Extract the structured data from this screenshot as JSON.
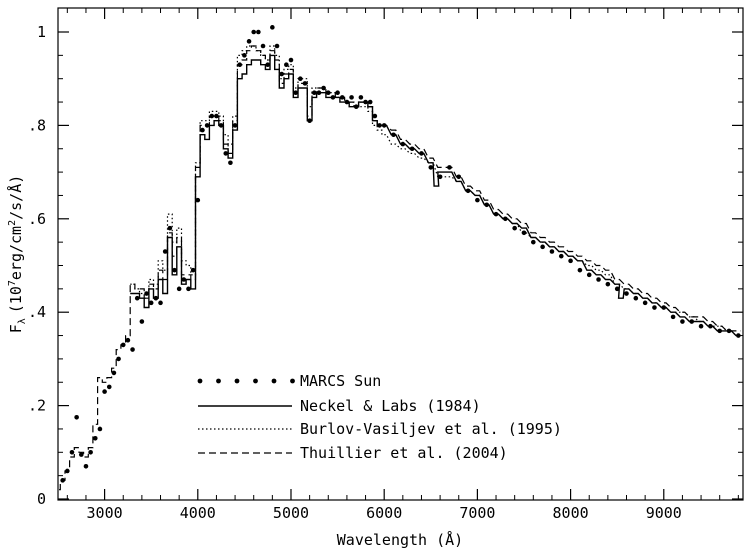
{
  "chart_data": {
    "type": "line",
    "title": "",
    "xlabel": "Wavelength (Å)",
    "ylabel_main": "F",
    "ylabel_sub": "λ",
    "ylabel_rest_1": "(10",
    "ylabel_sup_1": "7",
    "ylabel_rest_2": "erg/cm",
    "ylabel_sup_2": "2",
    "ylabel_rest_3": "/s/Å)",
    "xlim": [
      2500,
      9850
    ],
    "ylim": [
      0,
      1.05
    ],
    "xticks": [
      3000,
      4000,
      5000,
      6000,
      7000,
      8000,
      9000
    ],
    "xtick_labels": [
      "3000",
      "4000",
      "5000",
      "6000",
      "7000",
      "8000",
      "9000"
    ],
    "yticks": [
      0,
      0.2,
      0.4,
      0.6,
      0.8,
      1.0
    ],
    "ytick_labels": [
      "0",
      ".2",
      ".4",
      ".6",
      ".8",
      "1"
    ],
    "grid": false,
    "legend_placement": "lower-center",
    "series": [
      {
        "name": "MARCS Sun",
        "style": "dots",
        "x": [
          2550,
          2600,
          2650,
          2700,
          2750,
          2800,
          2850,
          2900,
          2950,
          3000,
          3050,
          3100,
          3150,
          3200,
          3250,
          3300,
          3350,
          3400,
          3450,
          3500,
          3550,
          3600,
          3650,
          3700,
          3750,
          3800,
          3850,
          3900,
          3950,
          4000,
          4050,
          4100,
          4150,
          4200,
          4250,
          4300,
          4350,
          4400,
          4450,
          4500,
          4550,
          4600,
          4650,
          4700,
          4750,
          4800,
          4850,
          4900,
          4950,
          5000,
          5050,
          5100,
          5150,
          5200,
          5250,
          5300,
          5350,
          5400,
          5450,
          5500,
          5550,
          5600,
          5650,
          5700,
          5750,
          5800,
          5850,
          5900,
          5950,
          6000,
          6100,
          6200,
          6300,
          6400,
          6500,
          6600,
          6700,
          6800,
          6900,
          7000,
          7100,
          7200,
          7300,
          7400,
          7500,
          7600,
          7700,
          7800,
          7900,
          8000,
          8100,
          8200,
          8300,
          8400,
          8500,
          8600,
          8700,
          8800,
          8900,
          9000,
          9100,
          9200,
          9300,
          9400,
          9500,
          9600,
          9700,
          9800
        ],
        "values": [
          0.04,
          0.06,
          0.1,
          0.175,
          0.095,
          0.07,
          0.1,
          0.13,
          0.15,
          0.23,
          0.24,
          0.27,
          0.3,
          0.33,
          0.34,
          0.32,
          0.43,
          0.38,
          0.44,
          0.42,
          0.43,
          0.42,
          0.53,
          0.58,
          0.49,
          0.45,
          0.47,
          0.45,
          0.49,
          0.64,
          0.79,
          0.8,
          0.82,
          0.82,
          0.8,
          0.74,
          0.72,
          0.8,
          0.93,
          0.95,
          0.98,
          1.0,
          1.0,
          0.97,
          0.93,
          1.01,
          0.97,
          0.91,
          0.93,
          0.94,
          0.87,
          0.9,
          0.89,
          0.81,
          0.87,
          0.87,
          0.88,
          0.87,
          0.86,
          0.87,
          0.86,
          0.85,
          0.86,
          0.84,
          0.86,
          0.85,
          0.85,
          0.82,
          0.8,
          0.8,
          0.78,
          0.76,
          0.75,
          0.74,
          0.71,
          0.69,
          0.71,
          0.69,
          0.66,
          0.64,
          0.63,
          0.61,
          0.6,
          0.58,
          0.57,
          0.55,
          0.54,
          0.53,
          0.52,
          0.51,
          0.49,
          0.48,
          0.47,
          0.46,
          0.45,
          0.44,
          0.43,
          0.42,
          0.41,
          0.41,
          0.39,
          0.38,
          0.38,
          0.37,
          0.37,
          0.36,
          0.36,
          0.35
        ]
      },
      {
        "name": "Neckel & Labs (1984)",
        "style": "solid",
        "x": [
          3300,
          3350,
          3400,
          3450,
          3500,
          3550,
          3600,
          3650,
          3700,
          3750,
          3800,
          3850,
          3900,
          3950,
          4000,
          4050,
          4100,
          4150,
          4200,
          4250,
          4300,
          4350,
          4400,
          4450,
          4500,
          4550,
          4600,
          4650,
          4700,
          4750,
          4800,
          4850,
          4900,
          4950,
          5000,
          5050,
          5100,
          5150,
          5200,
          5250,
          5300,
          5350,
          5400,
          5450,
          5500,
          5550,
          5600,
          5650,
          5700,
          5750,
          5800,
          5850,
          5900,
          5950,
          6000,
          6100,
          6200,
          6300,
          6400,
          6500,
          6560,
          6600,
          6700,
          6800,
          6900,
          7000,
          7100,
          7200,
          7300,
          7400,
          7500,
          7600,
          7700,
          7800,
          7900,
          8000,
          8100,
          8200,
          8300,
          8400,
          8500,
          8540,
          8600,
          8700,
          8800,
          8900,
          9000,
          9100,
          9200,
          9300,
          9400,
          9500,
          9600,
          9700,
          9800
        ],
        "values": [
          0.44,
          0.44,
          0.43,
          0.41,
          0.45,
          0.43,
          0.47,
          0.44,
          0.56,
          0.48,
          0.54,
          0.46,
          0.47,
          0.45,
          0.69,
          0.78,
          0.77,
          0.8,
          0.81,
          0.8,
          0.75,
          0.73,
          0.79,
          0.9,
          0.91,
          0.93,
          0.94,
          0.94,
          0.93,
          0.92,
          0.95,
          0.92,
          0.88,
          0.9,
          0.91,
          0.86,
          0.88,
          0.88,
          0.81,
          0.86,
          0.87,
          0.87,
          0.86,
          0.86,
          0.86,
          0.85,
          0.85,
          0.84,
          0.84,
          0.85,
          0.85,
          0.84,
          0.81,
          0.8,
          0.8,
          0.78,
          0.76,
          0.75,
          0.74,
          0.72,
          0.67,
          0.7,
          0.7,
          0.68,
          0.66,
          0.65,
          0.63,
          0.61,
          0.6,
          0.59,
          0.58,
          0.56,
          0.55,
          0.54,
          0.53,
          0.52,
          0.51,
          0.49,
          0.48,
          0.47,
          0.46,
          0.43,
          0.45,
          0.44,
          0.43,
          0.42,
          0.41,
          0.4,
          0.39,
          0.38,
          0.38,
          0.37,
          0.36,
          0.36,
          0.35
        ]
      },
      {
        "name": "Burlov-Vasiljev et al. (1995)",
        "style": "dotted",
        "x": [
          3300,
          3350,
          3400,
          3450,
          3500,
          3550,
          3600,
          3650,
          3700,
          3750,
          3800,
          3850,
          3900,
          3950,
          4000,
          4050,
          4100,
          4150,
          4200,
          4250,
          4300,
          4350,
          4400,
          4450,
          4500,
          4550,
          4600,
          4650,
          4700,
          4750,
          4800,
          4850,
          4900,
          4950,
          5000,
          5050,
          5100,
          5150,
          5200,
          5250,
          5300,
          5350,
          5400,
          5450,
          5500,
          5550,
          5600,
          5650,
          5700,
          5750,
          5800,
          5850,
          5900,
          5950,
          6000,
          6100,
          6200,
          6300,
          6400,
          6500,
          6600,
          6700,
          6800,
          6900,
          7000,
          7100,
          7200,
          7300,
          7400,
          7500,
          7600,
          7700,
          7800,
          7900,
          8000,
          8100,
          8200,
          8300,
          8400,
          8500,
          8600,
          8700,
          8800,
          8900,
          9000,
          9100,
          9200,
          9300,
          9400,
          9500,
          9600,
          9700,
          9800
        ],
        "values": [
          0.46,
          0.45,
          0.44,
          0.43,
          0.47,
          0.46,
          0.51,
          0.49,
          0.61,
          0.55,
          0.58,
          0.51,
          0.5,
          0.48,
          0.72,
          0.81,
          0.81,
          0.83,
          0.83,
          0.82,
          0.78,
          0.76,
          0.82,
          0.95,
          0.96,
          0.97,
          0.97,
          0.96,
          0.95,
          0.94,
          0.97,
          0.95,
          0.9,
          0.92,
          0.93,
          0.88,
          0.9,
          0.9,
          0.84,
          0.88,
          0.88,
          0.88,
          0.87,
          0.87,
          0.86,
          0.86,
          0.85,
          0.85,
          0.84,
          0.84,
          0.84,
          0.83,
          0.8,
          0.79,
          0.78,
          0.76,
          0.75,
          0.74,
          0.73,
          0.72,
          0.69,
          0.69,
          0.68,
          0.66,
          0.65,
          0.63,
          0.61,
          0.6,
          0.59,
          0.57,
          0.56,
          0.55,
          0.54,
          0.53,
          0.52,
          0.51,
          0.5,
          0.49,
          0.48,
          0.46,
          0.45,
          0.44,
          0.43,
          0.42,
          0.41,
          0.4,
          0.4,
          0.39,
          0.38,
          0.37,
          0.37,
          0.36,
          0.35
        ]
      },
      {
        "name": "Thuillier et al. (2004)",
        "style": "dashed",
        "x": [
          2500,
          2550,
          2600,
          2650,
          2700,
          2750,
          2800,
          2850,
          2900,
          2950,
          3000,
          3050,
          3100,
          3150,
          3200,
          3250,
          3300,
          3350,
          3400,
          3450,
          3500,
          3550,
          3600,
          3650,
          3700,
          3750,
          3800,
          3850,
          3900,
          3950,
          4000,
          4050,
          4100,
          4150,
          4200,
          4250,
          4300,
          4350,
          4400,
          4450,
          4500,
          4550,
          4600,
          4650,
          4700,
          4750,
          4800,
          4850,
          4900,
          4950,
          5000,
          5050,
          5100,
          5150,
          5200,
          5250,
          5300,
          5350,
          5400,
          5450,
          5500,
          5550,
          5600,
          5650,
          5700,
          5750,
          5800,
          5850,
          5900,
          5950,
          6000,
          6100,
          6200,
          6300,
          6400,
          6500,
          6600,
          6700,
          6800,
          6900,
          7000,
          7100,
          7200,
          7300,
          7400,
          7500,
          7600,
          7700,
          7800,
          7900,
          8000,
          8100,
          8200,
          8300,
          8400,
          8500,
          8600,
          8700,
          8800,
          8900,
          9000,
          9100,
          9200,
          9300,
          9400,
          9500,
          9600,
          9700,
          9800
        ],
        "values": [
          0.02,
          0.04,
          0.06,
          0.09,
          0.11,
          0.1,
          0.09,
          0.11,
          0.16,
          0.26,
          0.25,
          0.26,
          0.28,
          0.32,
          0.33,
          0.35,
          0.46,
          0.45,
          0.45,
          0.43,
          0.46,
          0.45,
          0.49,
          0.47,
          0.57,
          0.52,
          0.56,
          0.48,
          0.48,
          0.47,
          0.71,
          0.8,
          0.8,
          0.82,
          0.82,
          0.81,
          0.76,
          0.74,
          0.81,
          0.93,
          0.94,
          0.96,
          0.97,
          0.96,
          0.95,
          0.94,
          0.96,
          0.94,
          0.89,
          0.91,
          0.92,
          0.87,
          0.89,
          0.89,
          0.82,
          0.87,
          0.88,
          0.88,
          0.87,
          0.87,
          0.86,
          0.86,
          0.85,
          0.85,
          0.84,
          0.85,
          0.85,
          0.84,
          0.81,
          0.8,
          0.8,
          0.79,
          0.77,
          0.76,
          0.75,
          0.73,
          0.71,
          0.71,
          0.69,
          0.67,
          0.66,
          0.64,
          0.62,
          0.61,
          0.6,
          0.59,
          0.57,
          0.56,
          0.55,
          0.54,
          0.53,
          0.52,
          0.51,
          0.5,
          0.49,
          0.47,
          0.46,
          0.45,
          0.44,
          0.43,
          0.42,
          0.41,
          0.4,
          0.39,
          0.39,
          0.38,
          0.37,
          0.36,
          0.36
        ]
      }
    ]
  }
}
